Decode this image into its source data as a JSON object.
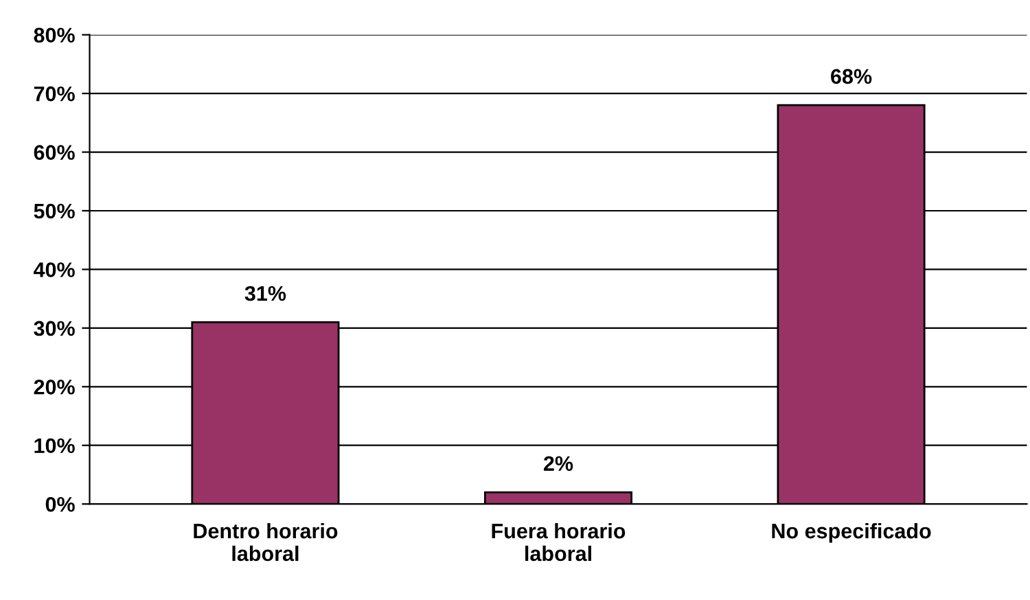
{
  "chart_data": {
    "type": "bar",
    "categories": [
      "Dentro horario\nlaboral",
      "Fuera horario\nlaboral",
      "No especificado"
    ],
    "values": [
      31,
      2,
      68
    ],
    "value_labels": [
      "31%",
      "2%",
      "68%"
    ],
    "color": "#993366",
    "ylim": [
      0,
      80
    ],
    "yticks": [
      {
        "value": 0,
        "label": "0%"
      },
      {
        "value": 10,
        "label": "10%"
      },
      {
        "value": 20,
        "label": "20%"
      },
      {
        "value": 30,
        "label": "30%"
      },
      {
        "value": 40,
        "label": "40%"
      },
      {
        "value": 50,
        "label": "50%"
      },
      {
        "value": 60,
        "label": "60%"
      },
      {
        "value": 70,
        "label": "70%"
      },
      {
        "value": 80,
        "label": "80%"
      }
    ],
    "grid": "y"
  }
}
